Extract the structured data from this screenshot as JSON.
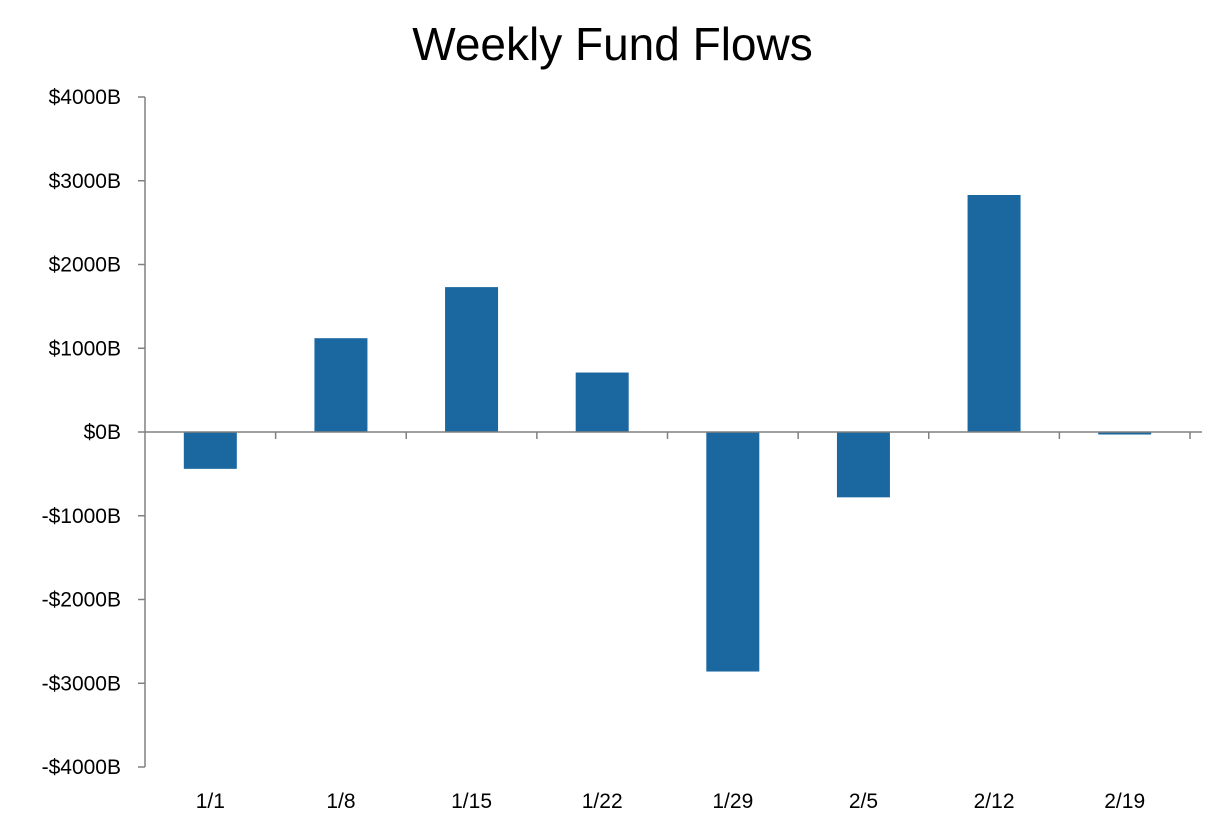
{
  "chart_data": {
    "type": "bar",
    "title": "Weekly Fund Flows",
    "xlabel": "",
    "ylabel": "",
    "categories": [
      "1/1",
      "1/8",
      "1/15",
      "1/22",
      "1/29",
      "2/5",
      "2/12",
      "2/19"
    ],
    "values": [
      -440,
      1120,
      1730,
      710,
      -2860,
      -780,
      2830,
      -30
    ],
    "ylim": [
      -4000,
      4000
    ],
    "yticks": [
      4000,
      3000,
      2000,
      1000,
      0,
      -1000,
      -2000,
      -3000,
      -4000
    ],
    "ytick_labels": [
      "$4000B",
      "$3000B",
      "$2000B",
      "$1000B",
      "$0B",
      "-$1000B",
      "-$2000B",
      "-$3000B",
      "-$4000B"
    ],
    "grid": false,
    "legend": "none",
    "bar_color": "#1b67a0",
    "axis_color": "#808080"
  }
}
